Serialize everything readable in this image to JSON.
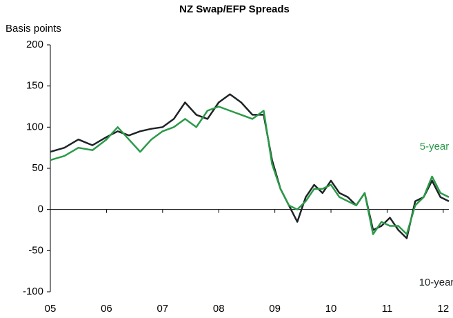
{
  "chart_data": {
    "type": "line",
    "title": "NZ Swap/EFP Spreads",
    "y_label": "Basis points",
    "x": [
      2005.0,
      2005.25,
      2005.5,
      2005.75,
      2006.0,
      2006.2,
      2006.4,
      2006.6,
      2006.8,
      2007.0,
      2007.2,
      2007.4,
      2007.6,
      2007.8,
      2008.0,
      2008.2,
      2008.4,
      2008.6,
      2008.8,
      2008.95,
      2009.1,
      2009.25,
      2009.4,
      2009.55,
      2009.7,
      2009.85,
      2010.0,
      2010.15,
      2010.3,
      2010.45,
      2010.6,
      2010.75,
      2010.9,
      2011.05,
      2011.2,
      2011.35,
      2011.5,
      2011.65,
      2011.8,
      2011.95,
      2012.1
    ],
    "series": [
      {
        "name": "10-year",
        "color": "#1e2326",
        "values": [
          70,
          75,
          85,
          78,
          88,
          95,
          90,
          95,
          98,
          100,
          110,
          130,
          115,
          110,
          130,
          140,
          130,
          115,
          115,
          60,
          25,
          5,
          -15,
          15,
          30,
          20,
          35,
          20,
          15,
          5,
          20,
          -25,
          -20,
          -10,
          -25,
          -35,
          10,
          15,
          35,
          15,
          10
        ]
      },
      {
        "name": "5-year",
        "color": "#2a9a48",
        "values": [
          60,
          65,
          75,
          72,
          85,
          100,
          85,
          70,
          85,
          95,
          100,
          110,
          100,
          120,
          125,
          120,
          115,
          110,
          120,
          55,
          25,
          5,
          0,
          10,
          25,
          25,
          30,
          15,
          10,
          5,
          20,
          -30,
          -15,
          -20,
          -20,
          -30,
          5,
          15,
          40,
          20,
          15
        ]
      }
    ],
    "xlim": [
      2005,
      2012.1
    ],
    "xticks": [
      {
        "value": 2005,
        "label": "05"
      },
      {
        "value": 2006,
        "label": "06"
      },
      {
        "value": 2007,
        "label": "07"
      },
      {
        "value": 2008,
        "label": "08"
      },
      {
        "value": 2009,
        "label": "09"
      },
      {
        "value": 2010,
        "label": "10"
      },
      {
        "value": 2011,
        "label": "11"
      },
      {
        "value": 2012,
        "label": "12"
      }
    ],
    "ylim": [
      -100,
      200
    ],
    "yticks": [
      -100,
      -50,
      0,
      50,
      100,
      150,
      200
    ],
    "grid": false
  }
}
